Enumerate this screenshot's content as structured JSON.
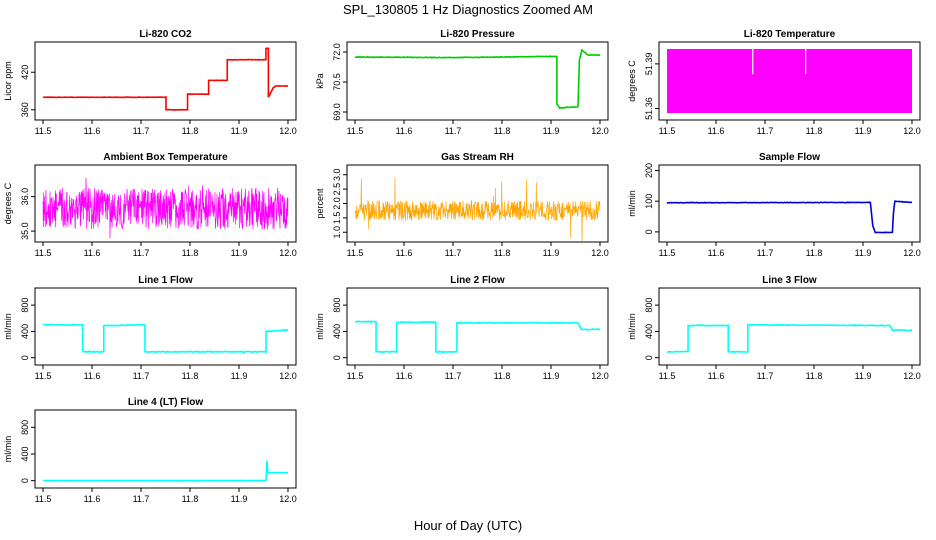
{
  "title": "SPL_130805 1 Hz Diagnostics Zoomed AM",
  "xlabel": "Hour of Day (UTC)",
  "chart_data": [
    {
      "type": "line",
      "title": "Li-820 CO2",
      "ylabel": "Licor ppm",
      "color": "#ff0000",
      "xlim": [
        11.5,
        12.0
      ],
      "xticks": [
        "11.5",
        "11.6",
        "11.7",
        "11.8",
        "11.9",
        "12.0"
      ],
      "ylim": [
        350,
        462
      ],
      "yticks": [
        {
          "v": 360,
          "t": "360"
        },
        {
          "v": 420,
          "t": "420"
        }
      ],
      "noise": 0.6,
      "series": [
        {
          "x": [
            11.5,
            11.751,
            11.751,
            11.795,
            11.795,
            11.838,
            11.838,
            11.876,
            11.876,
            11.955,
            11.955,
            11.96,
            11.96,
            11.97,
            11.975,
            12.0
          ],
          "y": [
            380,
            380,
            360,
            360,
            385,
            385,
            407,
            407,
            440,
            440,
            458,
            458,
            380,
            395,
            398,
            398
          ]
        }
      ]
    },
    {
      "type": "line",
      "title": "Li-820 Pressure",
      "ylabel": "kPa",
      "color": "#00cc00",
      "xlim": [
        11.5,
        12.0
      ],
      "xticks": [
        "11.5",
        "11.6",
        "11.7",
        "11.8",
        "11.9",
        "12.0"
      ],
      "ylim": [
        68.8,
        72.3
      ],
      "yticks": [
        {
          "v": 69.0,
          "t": "69.0"
        },
        {
          "v": 70.5,
          "t": "70.5"
        },
        {
          "v": 72.0,
          "t": "72.0"
        }
      ],
      "noise": 0.03,
      "series": [
        {
          "x": [
            11.5,
            11.7,
            11.9,
            11.912,
            11.912,
            11.918,
            11.945,
            11.955,
            11.958,
            11.963,
            11.975,
            12.0
          ],
          "y": [
            71.75,
            71.72,
            71.78,
            71.78,
            69.4,
            69.2,
            69.25,
            69.25,
            71.6,
            72.1,
            71.85,
            71.85
          ]
        }
      ]
    },
    {
      "type": "band",
      "title": "Li-820 Temperature",
      "ylabel": "degrees C",
      "color": "#ff00ff",
      "xlim": [
        11.5,
        12.0
      ],
      "xticks": [
        "11.5",
        "11.6",
        "11.7",
        "11.8",
        "11.9",
        "12.0"
      ],
      "ylim": [
        51.355,
        51.402
      ],
      "yticks": [
        {
          "v": 51.36,
          "t": "51.36"
        },
        {
          "v": 51.39,
          "t": "51.39"
        }
      ],
      "band": [
        51.357,
        51.4
      ],
      "gaps": [
        11.675,
        11.783
      ],
      "gap_low": 51.383
    },
    {
      "type": "noise",
      "title": "Ambient Box Temperature",
      "ylabel": "degrees C",
      "color": "#ff00ff",
      "xlim": [
        11.5,
        12.0
      ],
      "xticks": [
        "11.5",
        "11.6",
        "11.7",
        "11.8",
        "11.9",
        "12.0"
      ],
      "ylim": [
        34.8,
        36.8
      ],
      "yticks": [
        {
          "v": 35.0,
          "t": "35.0"
        },
        {
          "v": 36.0,
          "t": "36.0"
        }
      ],
      "center": 35.65,
      "amplitude": 0.6,
      "spikes": 0.9
    },
    {
      "type": "noise",
      "title": "Gas Stream RH",
      "ylabel": "percent",
      "color": "#ffa500",
      "xlim": [
        11.5,
        12.0
      ],
      "xticks": [
        "11.5",
        "11.6",
        "11.7",
        "11.8",
        "11.9",
        "12.0"
      ],
      "ylim": [
        0.8,
        3.2
      ],
      "yticks": [
        {
          "v": 1.0,
          "t": "1.0"
        },
        {
          "v": 1.5,
          "t": "1.5"
        },
        {
          "v": 2.0,
          "t": "2.0"
        },
        {
          "v": 2.5,
          "t": "2.5"
        },
        {
          "v": 3.0,
          "t": "3.0"
        }
      ],
      "center": 1.75,
      "amplitude": 0.35,
      "spikes": 1.3
    },
    {
      "type": "line",
      "title": "Sample Flow",
      "ylabel": "ml/min",
      "color": "#0000cc",
      "xlim": [
        11.5,
        12.0
      ],
      "xticks": [
        "11.5",
        "11.6",
        "11.7",
        "11.8",
        "11.9",
        "12.0"
      ],
      "ylim": [
        -20,
        205
      ],
      "yticks": [
        {
          "v": 0,
          "t": "0"
        },
        {
          "v": 100,
          "t": "100"
        },
        {
          "v": 200,
          "t": "200"
        }
      ],
      "noise": 1.5,
      "series": [
        {
          "x": [
            11.5,
            11.915,
            11.92,
            11.925,
            11.96,
            11.962,
            11.965,
            12.0
          ],
          "y": [
            95,
            96,
            20,
            -2,
            -2,
            60,
            100,
            96
          ]
        }
      ]
    },
    {
      "type": "line",
      "title": "Line 1 Flow",
      "ylabel": "ml/min",
      "color": "#00ffff",
      "xlim": [
        11.5,
        12.0
      ],
      "xticks": [
        "11.5",
        "11.6",
        "11.7",
        "11.8",
        "11.9",
        "12.0"
      ],
      "ylim": [
        -50,
        1000
      ],
      "yticks": [
        {
          "v": 0,
          "t": "0"
        },
        {
          "v": 400,
          "t": "400"
        },
        {
          "v": 800,
          "t": "800"
        }
      ],
      "noise": 12,
      "series": [
        {
          "x": [
            11.5,
            11.581,
            11.581,
            11.624,
            11.624,
            11.708,
            11.708,
            11.955,
            11.955,
            12.0
          ],
          "y": [
            500,
            500,
            90,
            90,
            490,
            500,
            90,
            90,
            400,
            420
          ]
        }
      ]
    },
    {
      "type": "line",
      "title": "Line 2 Flow",
      "ylabel": "ml/min",
      "color": "#00ffff",
      "xlim": [
        11.5,
        12.0
      ],
      "xticks": [
        "11.5",
        "11.6",
        "11.7",
        "11.8",
        "11.9",
        "12.0"
      ],
      "ylim": [
        -50,
        1000
      ],
      "yticks": [
        {
          "v": 0,
          "t": "0"
        },
        {
          "v": 400,
          "t": "400"
        },
        {
          "v": 800,
          "t": "800"
        }
      ],
      "noise": 12,
      "series": [
        {
          "x": [
            11.5,
            11.543,
            11.543,
            11.585,
            11.585,
            11.665,
            11.665,
            11.708,
            11.708,
            11.955,
            11.962,
            12.0
          ],
          "y": [
            550,
            550,
            90,
            90,
            540,
            540,
            90,
            90,
            530,
            530,
            430,
            430
          ]
        }
      ]
    },
    {
      "type": "line",
      "title": "Line 3 Flow",
      "ylabel": "ml/min",
      "color": "#00ffff",
      "xlim": [
        11.5,
        12.0
      ],
      "xticks": [
        "11.5",
        "11.6",
        "11.7",
        "11.8",
        "11.9",
        "12.0"
      ],
      "ylim": [
        -50,
        1000
      ],
      "yticks": [
        {
          "v": 0,
          "t": "0"
        },
        {
          "v": 400,
          "t": "400"
        },
        {
          "v": 800,
          "t": "800"
        }
      ],
      "noise": 10,
      "series": [
        {
          "x": [
            11.5,
            11.543,
            11.543,
            11.625,
            11.625,
            11.665,
            11.665,
            11.955,
            11.96,
            12.0
          ],
          "y": [
            90,
            90,
            490,
            490,
            90,
            90,
            500,
            490,
            420,
            420
          ]
        }
      ]
    },
    {
      "type": "line",
      "title": "Line 4 (LT) Flow",
      "ylabel": "ml/min",
      "color": "#00ffff",
      "xlim": [
        11.5,
        12.0
      ],
      "xticks": [
        "11.5",
        "11.6",
        "11.7",
        "11.8",
        "11.9",
        "12.0"
      ],
      "ylim": [
        -50,
        1000
      ],
      "yticks": [
        {
          "v": 0,
          "t": "0"
        },
        {
          "v": 400,
          "t": "400"
        },
        {
          "v": 800,
          "t": "800"
        }
      ],
      "noise": 2,
      "series": [
        {
          "x": [
            11.5,
            11.955,
            11.957,
            11.959,
            11.962,
            12.0
          ],
          "y": [
            2,
            2,
            300,
            120,
            120,
            120
          ]
        }
      ]
    }
  ]
}
